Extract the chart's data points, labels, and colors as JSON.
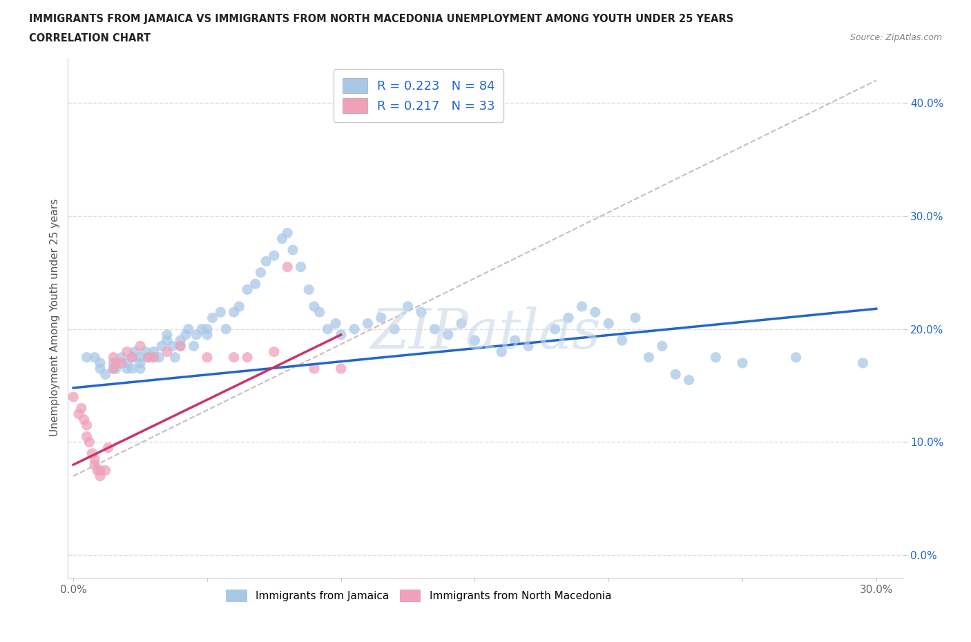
{
  "title_line1": "IMMIGRANTS FROM JAMAICA VS IMMIGRANTS FROM NORTH MACEDONIA UNEMPLOYMENT AMONG YOUTH UNDER 25 YEARS",
  "title_line2": "CORRELATION CHART",
  "source": "Source: ZipAtlas.com",
  "ylabel": "Unemployment Among Youth under 25 years",
  "xlim": [
    -0.002,
    0.31
  ],
  "ylim": [
    -0.02,
    0.44
  ],
  "xticks": [
    0.0,
    0.05,
    0.1,
    0.15,
    0.2,
    0.25,
    0.3
  ],
  "yticks": [
    0.0,
    0.1,
    0.2,
    0.3,
    0.4
  ],
  "ytick_labels": [
    "0.0%",
    "10.0%",
    "20.0%",
    "30.0%",
    "40.0%"
  ],
  "xtick_labels": [
    "0.0%",
    "",
    "",
    "",
    "",
    "",
    "30.0%"
  ],
  "jamaica_color": "#a8c8e8",
  "macedonia_color": "#f0a0b8",
  "background_color": "#ffffff",
  "grid_color": "#dddddd",
  "trend_jamaica_color": "#2266cc",
  "trend_macedonia_color": "#cc3366",
  "dashed_line_color": "#ccbbbb",
  "legend_R_color": "#2266cc",
  "legend_N_color": "#cc2222",
  "watermark": "ZIPatlas",
  "watermark_color": "#c8d8e8",
  "jamaica_R": "0.223",
  "jamaica_N": "84",
  "macedonia_R": "0.217",
  "macedonia_N": "33",
  "jamaica_trend_x0": 0.0,
  "jamaica_trend_y0": 0.148,
  "jamaica_trend_x1": 0.3,
  "jamaica_trend_y1": 0.218,
  "macedonia_trend_x0": 0.0,
  "macedonia_trend_y0": 0.08,
  "macedonia_trend_x1": 0.1,
  "macedonia_trend_y1": 0.195,
  "dashed_trend_x0": 0.0,
  "dashed_trend_y0": 0.07,
  "dashed_trend_x1": 0.3,
  "dashed_trend_y1": 0.42,
  "jamaica_x": [
    0.005,
    0.008,
    0.01,
    0.01,
    0.012,
    0.015,
    0.015,
    0.016,
    0.018,
    0.02,
    0.02,
    0.022,
    0.022,
    0.023,
    0.025,
    0.025,
    0.025,
    0.027,
    0.028,
    0.03,
    0.03,
    0.032,
    0.033,
    0.035,
    0.035,
    0.037,
    0.038,
    0.04,
    0.04,
    0.042,
    0.043,
    0.045,
    0.046,
    0.048,
    0.05,
    0.05,
    0.052,
    0.055,
    0.057,
    0.06,
    0.062,
    0.065,
    0.068,
    0.07,
    0.072,
    0.075,
    0.078,
    0.08,
    0.082,
    0.085,
    0.088,
    0.09,
    0.092,
    0.095,
    0.098,
    0.1,
    0.105,
    0.11,
    0.115,
    0.12,
    0.125,
    0.13,
    0.135,
    0.14,
    0.145,
    0.15,
    0.16,
    0.165,
    0.17,
    0.18,
    0.185,
    0.19,
    0.195,
    0.2,
    0.205,
    0.21,
    0.215,
    0.22,
    0.225,
    0.23,
    0.24,
    0.25,
    0.27,
    0.295
  ],
  "jamaica_y": [
    0.175,
    0.175,
    0.165,
    0.17,
    0.16,
    0.165,
    0.17,
    0.165,
    0.175,
    0.165,
    0.17,
    0.165,
    0.175,
    0.18,
    0.165,
    0.17,
    0.175,
    0.18,
    0.175,
    0.175,
    0.18,
    0.175,
    0.185,
    0.19,
    0.195,
    0.185,
    0.175,
    0.185,
    0.19,
    0.195,
    0.2,
    0.185,
    0.195,
    0.2,
    0.195,
    0.2,
    0.21,
    0.215,
    0.2,
    0.215,
    0.22,
    0.235,
    0.24,
    0.25,
    0.26,
    0.265,
    0.28,
    0.285,
    0.27,
    0.255,
    0.235,
    0.22,
    0.215,
    0.2,
    0.205,
    0.195,
    0.2,
    0.205,
    0.21,
    0.2,
    0.22,
    0.215,
    0.2,
    0.195,
    0.205,
    0.19,
    0.18,
    0.19,
    0.185,
    0.2,
    0.21,
    0.22,
    0.215,
    0.205,
    0.19,
    0.21,
    0.175,
    0.185,
    0.16,
    0.155,
    0.175,
    0.17,
    0.175,
    0.17
  ],
  "macedonia_x": [
    0.0,
    0.002,
    0.003,
    0.004,
    0.005,
    0.005,
    0.006,
    0.007,
    0.008,
    0.008,
    0.009,
    0.01,
    0.01,
    0.012,
    0.013,
    0.015,
    0.015,
    0.016,
    0.018,
    0.02,
    0.022,
    0.025,
    0.028,
    0.03,
    0.035,
    0.04,
    0.05,
    0.06,
    0.065,
    0.075,
    0.08,
    0.09,
    0.1
  ],
  "macedonia_y": [
    0.14,
    0.125,
    0.13,
    0.12,
    0.115,
    0.105,
    0.1,
    0.09,
    0.085,
    0.08,
    0.075,
    0.075,
    0.07,
    0.075,
    0.095,
    0.165,
    0.175,
    0.17,
    0.17,
    0.18,
    0.175,
    0.185,
    0.175,
    0.175,
    0.18,
    0.185,
    0.175,
    0.175,
    0.175,
    0.18,
    0.255,
    0.165,
    0.165
  ]
}
